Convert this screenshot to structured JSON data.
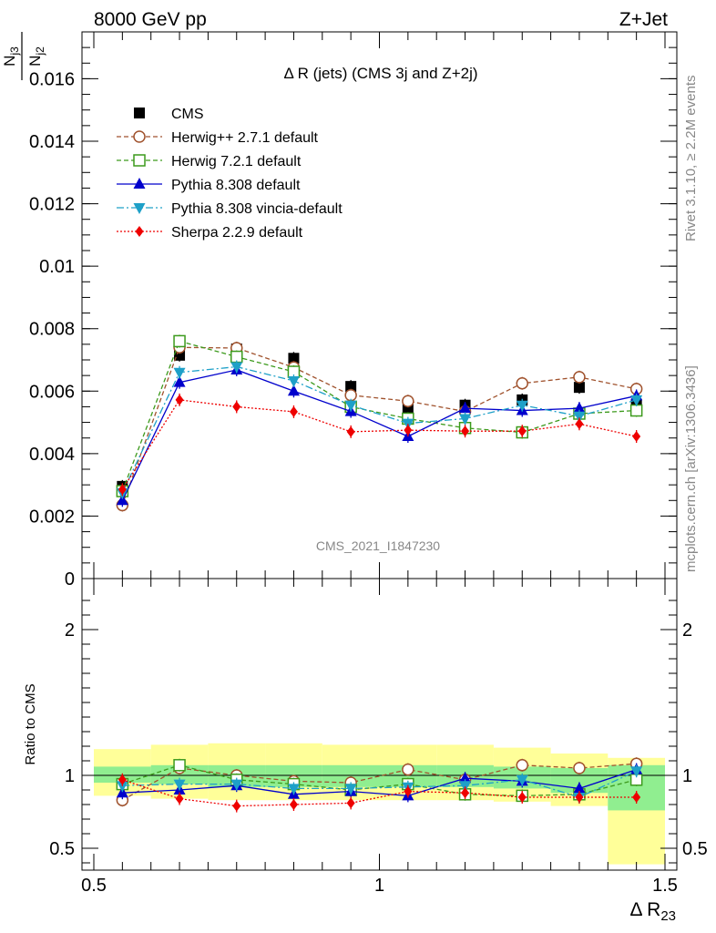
{
  "header": {
    "left": "8000 GeV pp",
    "right": "Z+Jet"
  },
  "side_text": {
    "rivet": "Rivet 3.1.10, ≥ 2.2M events",
    "mcplots": "mcplots.cern.ch [arXiv:1306.3436]"
  },
  "watermark": "CMS_2021_I1847230",
  "colors": {
    "CMS": "#000000",
    "Herwig++ 2.7.1 default": "#a0522d",
    "Herwig 7.2.1 default": "#3c9a1c",
    "Pythia 8.308 default": "#0000cc",
    "Pythia 8.308 vincia-default": "#1ea0c8",
    "Sherpa 2.2.9 default": "#ee0000",
    "band_inner": "#90ee90",
    "band_outer": "#ffff99"
  },
  "chart_data": [
    {
      "type": "scatter",
      "panel": "main",
      "title": "Δ R (jets) (CMS 3j and Z+2j)",
      "ylabel": "Nj3 / Nj2",
      "xlim": [
        0.5,
        1.5
      ],
      "ylim": [
        0,
        0.0175
      ],
      "y_ticks": [
        "0",
        "0.002",
        "0.004",
        "0.006",
        "0.008",
        "0.01",
        "0.012",
        "0.014",
        "0.016"
      ],
      "legend_position": "top-left",
      "x": [
        0.55,
        0.65,
        0.75,
        0.85,
        0.95,
        1.05,
        1.15,
        1.25,
        1.35,
        1.45
      ],
      "series": [
        {
          "name": "CMS",
          "values": [
            0.00295,
            0.00715,
            0.00735,
            0.00705,
            0.00615,
            0.00545,
            0.00555,
            0.00572,
            0.00612,
            0.00558
          ]
        },
        {
          "name": "Herwig++ 2.7.1 default",
          "values": [
            0.00235,
            0.0074,
            0.00738,
            0.00676,
            0.00587,
            0.00568,
            0.00535,
            0.00625,
            0.00645,
            0.00607
          ]
        },
        {
          "name": "Herwig 7.2.1 default",
          "values": [
            0.0028,
            0.0076,
            0.0071,
            0.00662,
            0.0055,
            0.00512,
            0.00482,
            0.00468,
            0.00528,
            0.00538
          ]
        },
        {
          "name": "Pythia 8.308 default",
          "values": [
            0.0025,
            0.00628,
            0.00668,
            0.006,
            0.00535,
            0.00455,
            0.00545,
            0.00538,
            0.00545,
            0.00585
          ]
        },
        {
          "name": "Pythia 8.308 vincia-default",
          "values": [
            0.00275,
            0.0066,
            0.00678,
            0.00633,
            0.00555,
            0.00497,
            0.00512,
            0.00555,
            0.0052,
            0.00572
          ]
        },
        {
          "name": "Sherpa 2.2.9 default",
          "values": [
            0.00285,
            0.00572,
            0.0055,
            0.00534,
            0.0047,
            0.00475,
            0.00472,
            0.00472,
            0.00495,
            0.00455
          ]
        }
      ]
    },
    {
      "type": "scatter",
      "panel": "ratio",
      "ylabel": "Ratio to CMS",
      "xlabel": "Δ R23",
      "xlim": [
        0.5,
        1.5
      ],
      "ylim": [
        0.35,
        2.35
      ],
      "y_ticks": [
        "0.5",
        "1",
        "2"
      ],
      "x_ticks": [
        "0.5",
        "1",
        "1.5"
      ],
      "x": [
        0.55,
        0.65,
        0.75,
        0.85,
        0.95,
        1.05,
        1.15,
        1.25,
        1.35,
        1.45
      ],
      "bands": {
        "edges": [
          0.5,
          0.6,
          0.7,
          0.8,
          0.9,
          1.0,
          1.1,
          1.2,
          1.3,
          1.4,
          1.5
        ],
        "inner_low": [
          0.95,
          0.94,
          0.92,
          0.92,
          0.92,
          0.92,
          0.92,
          0.91,
          0.88,
          0.76
        ],
        "inner_high": [
          1.06,
          1.07,
          1.07,
          1.07,
          1.07,
          1.07,
          1.07,
          1.06,
          1.05,
          1.07
        ],
        "outer_low": [
          0.86,
          0.84,
          0.83,
          0.83,
          0.83,
          0.83,
          0.83,
          0.82,
          0.79,
          0.39
        ],
        "outer_high": [
          1.18,
          1.21,
          1.22,
          1.22,
          1.21,
          1.21,
          1.21,
          1.19,
          1.15,
          1.12
        ]
      },
      "series": [
        {
          "name": "Herwig++ 2.7.1 default",
          "values": [
            0.83,
            1.05,
            1.0,
            0.96,
            0.95,
            1.04,
            0.97,
            1.07,
            1.05,
            1.08
          ]
        },
        {
          "name": "Herwig 7.2.1 default",
          "values": [
            0.94,
            1.07,
            0.97,
            0.94,
            0.9,
            0.94,
            0.87,
            0.86,
            0.87,
            0.97
          ]
        },
        {
          "name": "Pythia 8.308 default",
          "values": [
            0.88,
            0.9,
            0.93,
            0.87,
            0.89,
            0.86,
            0.98,
            0.96,
            0.91,
            1.04
          ]
        },
        {
          "name": "Pythia 8.308 vincia-default",
          "values": [
            0.93,
            0.94,
            0.94,
            0.91,
            0.91,
            0.92,
            0.93,
            0.97,
            0.85,
            1.03
          ]
        },
        {
          "name": "Sherpa 2.2.9 default",
          "values": [
            0.97,
            0.84,
            0.79,
            0.8,
            0.81,
            0.89,
            0.88,
            0.85,
            0.85,
            0.85
          ]
        }
      ]
    }
  ]
}
